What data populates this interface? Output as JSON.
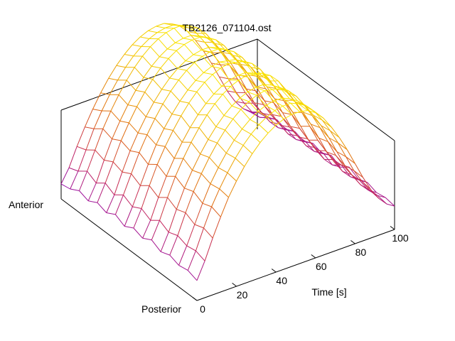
{
  "chart_data": {
    "type": "surface",
    "title": "TB2126_071104.ost",
    "xlabel": "Time [s]",
    "y_axis_end_labels": [
      "Anterior",
      "Posterior"
    ],
    "x_range": [
      0,
      100
    ],
    "x_ticks": [
      "0",
      "20",
      "40",
      "60",
      "80",
      "100"
    ],
    "x": [
      0,
      4,
      8,
      12,
      16,
      20,
      24,
      28,
      32,
      36,
      40,
      44,
      48,
      52,
      56,
      60,
      64,
      68,
      72,
      76,
      80,
      84,
      88,
      92,
      96,
      100
    ],
    "y_samples": 16,
    "z_range": [
      0,
      1
    ],
    "z_values": [
      [
        0.12,
        0.22,
        0.34,
        0.45,
        0.55,
        0.63,
        0.7,
        0.76,
        0.81,
        0.85,
        0.88,
        0.9,
        0.91,
        0.91,
        0.9,
        0.87,
        0.82,
        0.75,
        0.67,
        0.58,
        0.48,
        0.38,
        0.29,
        0.22,
        0.17,
        0.14
      ],
      [
        0.14,
        0.24,
        0.36,
        0.47,
        0.56,
        0.64,
        0.71,
        0.77,
        0.82,
        0.86,
        0.89,
        0.91,
        0.92,
        0.92,
        0.9,
        0.87,
        0.82,
        0.75,
        0.67,
        0.58,
        0.48,
        0.38,
        0.3,
        0.23,
        0.18,
        0.15
      ],
      [
        0.13,
        0.23,
        0.34,
        0.45,
        0.55,
        0.63,
        0.7,
        0.76,
        0.81,
        0.85,
        0.88,
        0.9,
        0.91,
        0.91,
        0.89,
        0.86,
        0.81,
        0.74,
        0.66,
        0.57,
        0.47,
        0.37,
        0.29,
        0.22,
        0.17,
        0.14
      ],
      [
        0.15,
        0.25,
        0.37,
        0.48,
        0.57,
        0.65,
        0.72,
        0.78,
        0.83,
        0.87,
        0.9,
        0.92,
        0.93,
        0.92,
        0.91,
        0.88,
        0.83,
        0.76,
        0.68,
        0.59,
        0.49,
        0.39,
        0.31,
        0.24,
        0.19,
        0.16
      ],
      [
        0.13,
        0.23,
        0.35,
        0.46,
        0.55,
        0.63,
        0.7,
        0.76,
        0.81,
        0.85,
        0.88,
        0.9,
        0.91,
        0.91,
        0.89,
        0.86,
        0.81,
        0.74,
        0.66,
        0.57,
        0.47,
        0.37,
        0.29,
        0.22,
        0.17,
        0.14
      ],
      [
        0.16,
        0.26,
        0.38,
        0.49,
        0.58,
        0.66,
        0.73,
        0.79,
        0.84,
        0.88,
        0.91,
        0.93,
        0.94,
        0.93,
        0.92,
        0.89,
        0.84,
        0.77,
        0.69,
        0.6,
        0.5,
        0.4,
        0.32,
        0.25,
        0.2,
        0.17
      ],
      [
        0.13,
        0.22,
        0.34,
        0.45,
        0.54,
        0.62,
        0.69,
        0.75,
        0.8,
        0.84,
        0.87,
        0.89,
        0.9,
        0.9,
        0.88,
        0.85,
        0.8,
        0.73,
        0.65,
        0.56,
        0.46,
        0.36,
        0.28,
        0.21,
        0.16,
        0.13
      ],
      [
        0.15,
        0.25,
        0.37,
        0.48,
        0.57,
        0.65,
        0.72,
        0.78,
        0.83,
        0.87,
        0.9,
        0.92,
        0.93,
        0.92,
        0.91,
        0.88,
        0.83,
        0.76,
        0.68,
        0.59,
        0.49,
        0.39,
        0.31,
        0.24,
        0.19,
        0.16
      ],
      [
        0.12,
        0.22,
        0.33,
        0.44,
        0.54,
        0.62,
        0.69,
        0.75,
        0.8,
        0.84,
        0.87,
        0.89,
        0.9,
        0.89,
        0.88,
        0.85,
        0.8,
        0.73,
        0.65,
        0.56,
        0.46,
        0.36,
        0.28,
        0.21,
        0.16,
        0.13
      ],
      [
        0.15,
        0.25,
        0.36,
        0.47,
        0.56,
        0.64,
        0.71,
        0.77,
        0.82,
        0.86,
        0.89,
        0.91,
        0.92,
        0.92,
        0.9,
        0.87,
        0.82,
        0.75,
        0.67,
        0.58,
        0.48,
        0.38,
        0.3,
        0.23,
        0.18,
        0.15
      ],
      [
        0.12,
        0.21,
        0.33,
        0.44,
        0.53,
        0.61,
        0.68,
        0.74,
        0.79,
        0.83,
        0.86,
        0.88,
        0.89,
        0.89,
        0.87,
        0.84,
        0.79,
        0.72,
        0.64,
        0.55,
        0.45,
        0.35,
        0.27,
        0.2,
        0.15,
        0.12
      ],
      [
        0.14,
        0.24,
        0.35,
        0.46,
        0.55,
        0.63,
        0.7,
        0.76,
        0.81,
        0.85,
        0.88,
        0.9,
        0.91,
        0.91,
        0.89,
        0.86,
        0.81,
        0.74,
        0.66,
        0.57,
        0.47,
        0.37,
        0.29,
        0.22,
        0.17,
        0.14
      ],
      [
        0.11,
        0.2,
        0.32,
        0.43,
        0.52,
        0.6,
        0.67,
        0.73,
        0.78,
        0.82,
        0.85,
        0.87,
        0.88,
        0.88,
        0.86,
        0.83,
        0.78,
        0.71,
        0.63,
        0.54,
        0.44,
        0.34,
        0.26,
        0.19,
        0.14,
        0.11
      ],
      [
        0.13,
        0.23,
        0.34,
        0.45,
        0.54,
        0.62,
        0.69,
        0.75,
        0.8,
        0.84,
        0.87,
        0.89,
        0.9,
        0.9,
        0.88,
        0.85,
        0.8,
        0.73,
        0.65,
        0.56,
        0.46,
        0.36,
        0.28,
        0.21,
        0.16,
        0.13
      ],
      [
        0.1,
        0.19,
        0.3,
        0.41,
        0.5,
        0.58,
        0.65,
        0.71,
        0.76,
        0.8,
        0.83,
        0.85,
        0.86,
        0.86,
        0.84,
        0.81,
        0.76,
        0.69,
        0.61,
        0.52,
        0.42,
        0.32,
        0.24,
        0.17,
        0.12,
        0.1
      ],
      [
        0.09,
        0.17,
        0.28,
        0.38,
        0.47,
        0.55,
        0.62,
        0.68,
        0.73,
        0.77,
        0.8,
        0.82,
        0.83,
        0.83,
        0.81,
        0.78,
        0.73,
        0.66,
        0.58,
        0.49,
        0.39,
        0.29,
        0.21,
        0.15,
        0.11,
        0.09
      ]
    ],
    "colormap": [
      "#7a00d6",
      "#c5265a",
      "#e06a10",
      "#f2c000",
      "#ffff00"
    ],
    "frame_color": "#000000",
    "grid": false,
    "legend": "none"
  }
}
